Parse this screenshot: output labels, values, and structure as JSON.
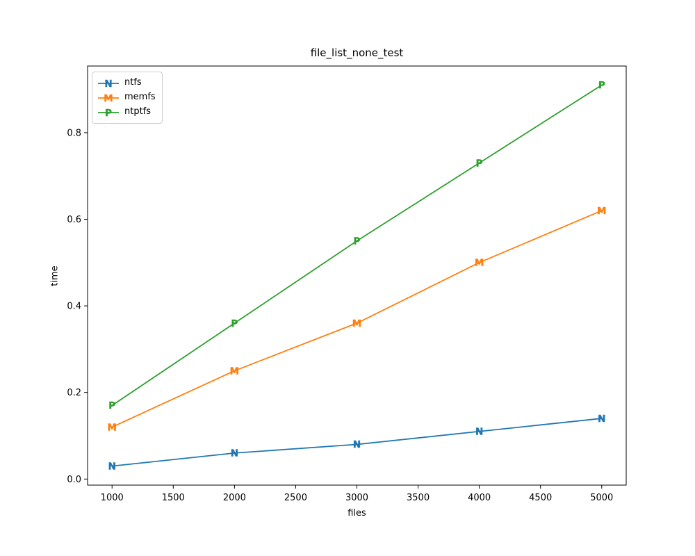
{
  "chart_data": {
    "type": "line",
    "title": "file_list_none_test",
    "xlabel": "files",
    "ylabel": "time",
    "x": [
      1000,
      2000,
      3000,
      4000,
      5000
    ],
    "xlim": [
      800,
      5200
    ],
    "ylim": [
      -0.014,
      0.954
    ],
    "xticks": [
      1000,
      1500,
      2000,
      2500,
      3000,
      3500,
      4000,
      4500,
      5000
    ],
    "yticks": [
      0.0,
      0.2,
      0.4,
      0.6,
      0.8
    ],
    "grid": false,
    "legend_position": "upper-left",
    "background_color": "#ffffff",
    "spine_color": "#000000",
    "series": [
      {
        "name": "ntfs",
        "color": "#1f77b4",
        "marker": "N",
        "values": [
          0.03,
          0.06,
          0.08,
          0.11,
          0.14
        ]
      },
      {
        "name": "memfs",
        "color": "#ff7f0e",
        "marker": "M",
        "values": [
          0.12,
          0.25,
          0.36,
          0.5,
          0.62
        ]
      },
      {
        "name": "ntptfs",
        "color": "#2ca02c",
        "marker": "P",
        "values": [
          0.17,
          0.36,
          0.55,
          0.73,
          0.91
        ]
      }
    ]
  }
}
